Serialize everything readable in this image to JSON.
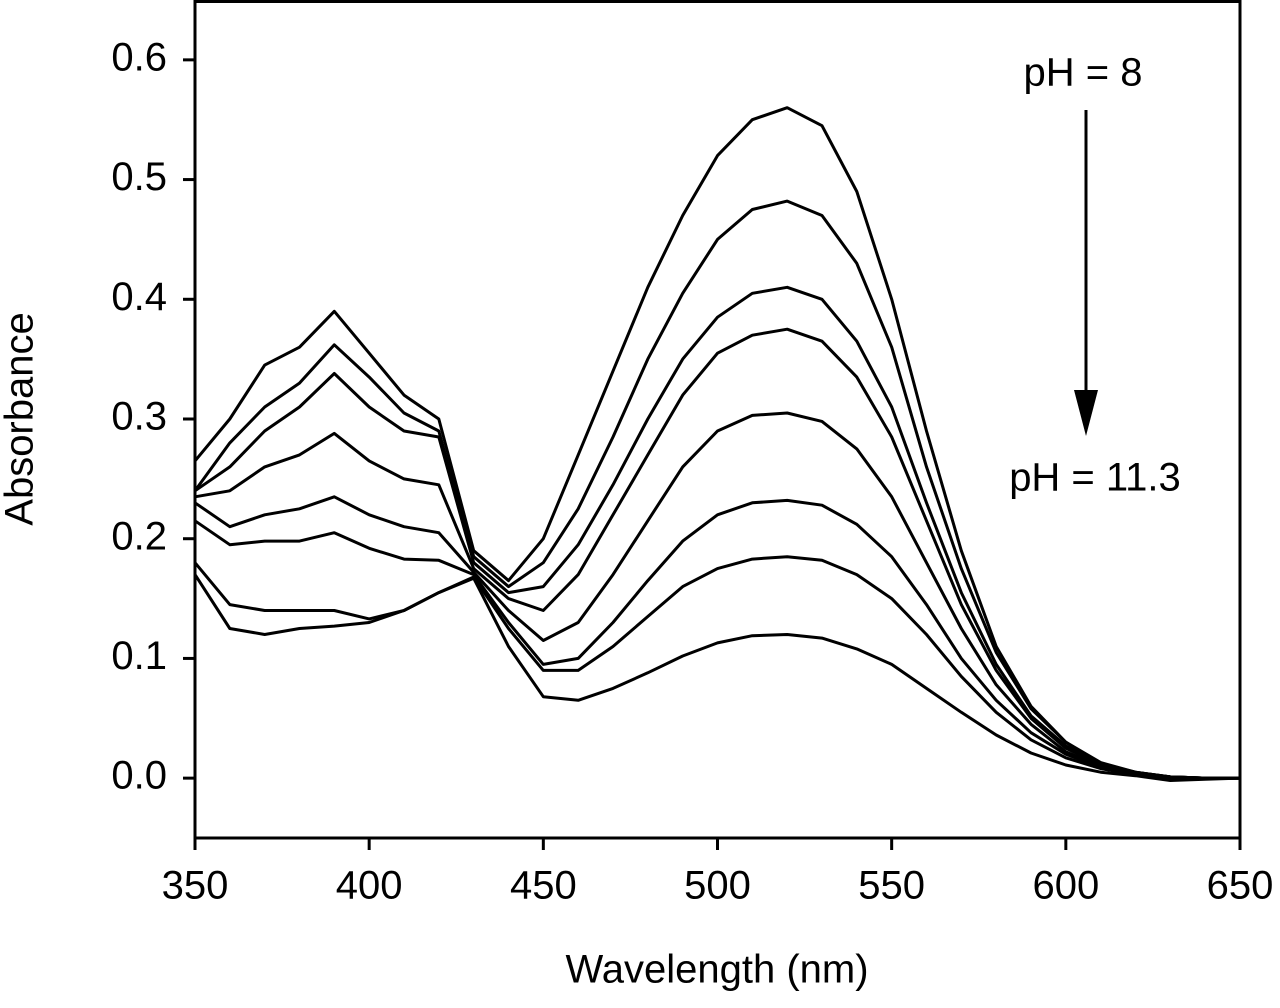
{
  "chart_data": {
    "type": "line",
    "x_label": "Wavelength (nm)",
    "y_label": "Absorbance",
    "annotations": [
      "pH = 8",
      "pH = 11.3"
    ],
    "x": [
      350,
      360,
      370,
      380,
      390,
      400,
      410,
      420,
      430,
      440,
      450,
      460,
      470,
      480,
      490,
      500,
      510,
      520,
      530,
      540,
      550,
      560,
      570,
      580,
      590,
      600,
      610,
      620,
      630,
      640,
      650
    ],
    "series": [
      {
        "color": "#000000",
        "values": [
          0.265,
          0.3,
          0.345,
          0.36,
          0.39,
          0.355,
          0.32,
          0.3,
          0.19,
          0.165,
          0.2,
          0.27,
          0.34,
          0.41,
          0.47,
          0.52,
          0.55,
          0.56,
          0.545,
          0.49,
          0.4,
          0.29,
          0.19,
          0.11,
          0.06,
          0.03,
          0.012,
          0.005,
          0.001,
          0,
          0
        ]
      },
      {
        "color": "#000000",
        "values": [
          0.24,
          0.28,
          0.31,
          0.33,
          0.362,
          0.335,
          0.305,
          0.29,
          0.185,
          0.16,
          0.18,
          0.225,
          0.285,
          0.35,
          0.405,
          0.45,
          0.475,
          0.482,
          0.47,
          0.43,
          0.36,
          0.26,
          0.175,
          0.105,
          0.058,
          0.03,
          0.013,
          0.005,
          0.001,
          0,
          0
        ]
      },
      {
        "color": "#000000",
        "values": [
          0.24,
          0.26,
          0.29,
          0.31,
          0.338,
          0.31,
          0.29,
          0.285,
          0.18,
          0.155,
          0.16,
          0.195,
          0.245,
          0.3,
          0.35,
          0.385,
          0.405,
          0.41,
          0.4,
          0.365,
          0.31,
          0.23,
          0.155,
          0.095,
          0.052,
          0.027,
          0.012,
          0.005,
          0.001,
          0,
          0
        ]
      },
      {
        "color": "#000000",
        "values": [
          0.235,
          0.24,
          0.26,
          0.27,
          0.288,
          0.265,
          0.25,
          0.245,
          0.175,
          0.15,
          0.14,
          0.17,
          0.22,
          0.27,
          0.32,
          0.355,
          0.37,
          0.375,
          0.365,
          0.335,
          0.285,
          0.215,
          0.145,
          0.09,
          0.05,
          0.025,
          0.011,
          0.004,
          0.001,
          0,
          0
        ]
      },
      {
        "color": "#000000",
        "values": [
          0.23,
          0.21,
          0.22,
          0.225,
          0.235,
          0.22,
          0.21,
          0.205,
          0.172,
          0.14,
          0.115,
          0.13,
          0.17,
          0.215,
          0.26,
          0.29,
          0.303,
          0.305,
          0.298,
          0.275,
          0.235,
          0.18,
          0.125,
          0.078,
          0.045,
          0.022,
          0.01,
          0.004,
          0.001,
          0,
          0
        ]
      },
      {
        "color": "#000000",
        "values": [
          0.215,
          0.195,
          0.198,
          0.198,
          0.205,
          0.192,
          0.183,
          0.182,
          0.17,
          0.13,
          0.095,
          0.1,
          0.13,
          0.165,
          0.198,
          0.22,
          0.23,
          0.232,
          0.228,
          0.212,
          0.185,
          0.145,
          0.1,
          0.065,
          0.038,
          0.02,
          0.009,
          0.003,
          0,
          0,
          0
        ]
      },
      {
        "color": "#000000",
        "values": [
          0.18,
          0.145,
          0.14,
          0.14,
          0.14,
          0.133,
          0.14,
          0.155,
          0.168,
          0.125,
          0.09,
          0.09,
          0.11,
          0.135,
          0.16,
          0.175,
          0.183,
          0.185,
          0.182,
          0.17,
          0.15,
          0.12,
          0.085,
          0.055,
          0.032,
          0.017,
          0.008,
          0.003,
          0,
          0,
          0
        ]
      },
      {
        "color": "#000000",
        "values": [
          0.17,
          0.125,
          0.12,
          0.125,
          0.127,
          0.13,
          0.14,
          0.155,
          0.167,
          0.11,
          0.068,
          0.065,
          0.075,
          0.088,
          0.102,
          0.113,
          0.119,
          0.12,
          0.117,
          0.108,
          0.095,
          0.075,
          0.055,
          0.036,
          0.021,
          0.011,
          0.005,
          0.002,
          -0.002,
          -0.001,
          0
        ]
      }
    ],
    "xlim": [
      350,
      650
    ],
    "xticks": [
      350,
      400,
      450,
      500,
      550,
      600,
      650
    ],
    "ylim": [
      -0.05,
      0.65
    ],
    "yticks": [
      {
        "value": 0,
        "label": "0.0"
      },
      0.1,
      0.2,
      0.3,
      0.4,
      0.5,
      0.6
    ],
    "grid": false
  }
}
